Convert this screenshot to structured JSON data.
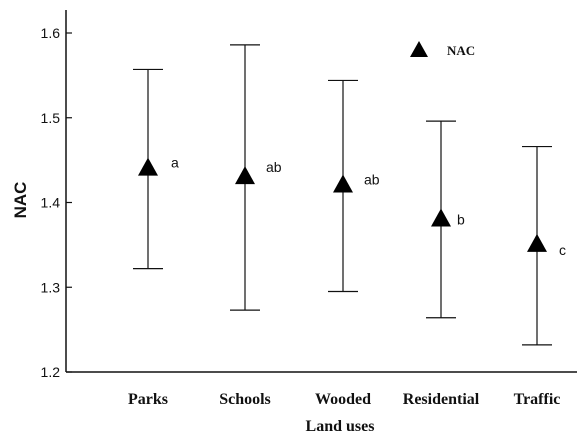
{
  "chart_data": {
    "type": "scatter",
    "xlabel": "Land uses",
    "ylabel": "NAC",
    "ylim": [
      1.2,
      1.6
    ],
    "yticks": [
      "1.2",
      "1.3",
      "1.4",
      "1.5",
      "1.6"
    ],
    "categories": [
      "Parks",
      "Schools",
      "Wooded",
      "Residential",
      "Traffic"
    ],
    "series": [
      {
        "name": "NAC",
        "marker": "triangle",
        "color": "#000000",
        "values": [
          1.44,
          1.43,
          1.42,
          1.38,
          1.35
        ],
        "error_upper": [
          1.557,
          1.586,
          1.544,
          1.496,
          1.466
        ],
        "error_lower": [
          1.322,
          1.273,
          1.295,
          1.264,
          1.232
        ],
        "significance": [
          "a",
          "ab",
          "ab",
          "b",
          "c"
        ]
      }
    ],
    "legend": {
      "position": "top-right"
    },
    "grid": false
  }
}
